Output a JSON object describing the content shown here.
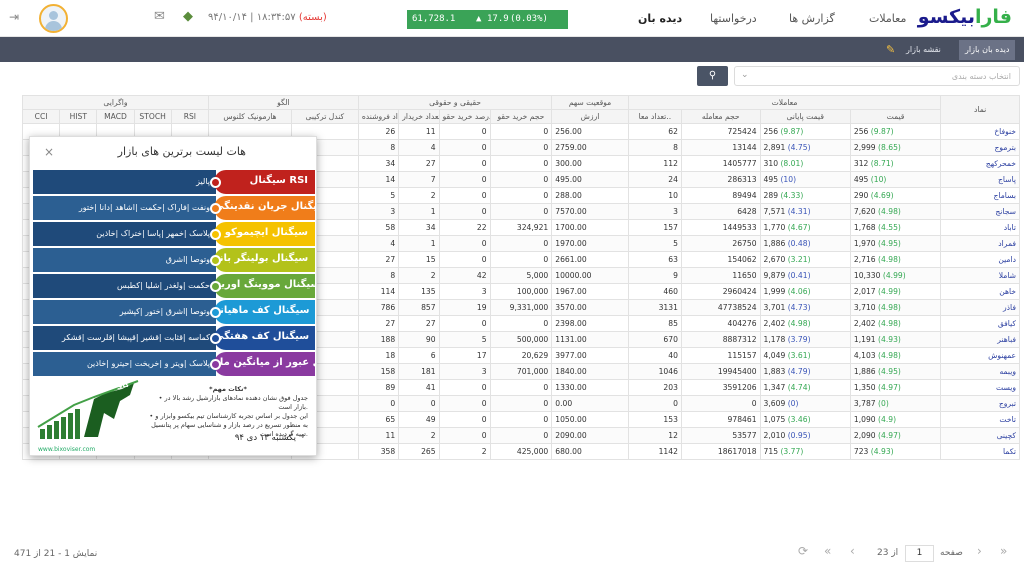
{
  "header": {
    "logo_a": "فارا",
    "logo_b": "بیکسو",
    "nav": [
      "معاملات",
      "گزارش ها",
      "درخواستها",
      "دیده بان"
    ],
    "ticker": {
      "value": "61,728.1",
      "change": "17.9",
      "pct": "(0.03%)"
    },
    "time": "۱۸:۳۴:۵۷",
    "date": "۹۴/۱۰/۱۴",
    "session": "(بسته)"
  },
  "subnav": {
    "tabs": [
      "دیده بان بازار",
      "نقشه بازار"
    ]
  },
  "filter": {
    "placeholder": "انتخاب دسته بندی"
  },
  "table": {
    "group_headers": [
      "نماد",
      "معاملات",
      "موقعیت سهم",
      "حقیقی و حقوقی",
      "الگو",
      "واگرایی"
    ],
    "columns": [
      "قیمت",
      "قیمت پایانی",
      "حجم معامله",
      "تعداد معا..",
      "ارزش",
      "حجم خرید حقو",
      "درصد خرید حقو",
      "تعداد خریدار",
      "تعداد فروشنده",
      "کندل ترکیبی",
      "هارمونیک کلنوس",
      "RSI",
      "STOCH",
      "MACD",
      "HIST",
      "CCI"
    ],
    "rows": [
      {
        "sym": "خنوفاخ",
        "price": "256",
        "pp": "(9.87)",
        "close": "256",
        "cp": "(9.87)",
        "vol": "725424",
        "cnt": "62",
        "val": "256.00",
        "hv": "0",
        "hp": "0",
        "buyers": "11",
        "sellers": "26"
      },
      {
        "sym": "بترموج",
        "price": "2,999",
        "pp": "(8.65)",
        "close": "2,891",
        "cp": "(4.75)",
        "vol": "13144",
        "cnt": "8",
        "val": "2759.00",
        "hv": "0",
        "hp": "0",
        "buyers": "4",
        "sellers": "8"
      },
      {
        "sym": "خمحرکهج",
        "price": "312",
        "pp": "(8.71)",
        "close": "310",
        "cp": "(8.01)",
        "vol": "1405777",
        "cnt": "112",
        "val": "300.00",
        "hv": "0",
        "hp": "0",
        "buyers": "27",
        "sellers": "34"
      },
      {
        "sym": "پاساج",
        "price": "495",
        "pp": "(10)",
        "close": "495",
        "cp": "(10)",
        "vol": "286313",
        "cnt": "24",
        "val": "495.00",
        "hv": "0",
        "hp": "0",
        "buyers": "7",
        "sellers": "14"
      },
      {
        "sym": "بساماج",
        "price": "290",
        "pp": "(4.69)",
        "close": "289",
        "cp": "(4.33)",
        "vol": "89494",
        "cnt": "10",
        "val": "288.00",
        "hv": "0",
        "hp": "0",
        "buyers": "2",
        "sellers": "5"
      },
      {
        "sym": "سجانج",
        "price": "7,620",
        "pp": "(4.98)",
        "close": "7,571",
        "cp": "(4.31)",
        "vol": "6428",
        "cnt": "3",
        "val": "7570.00",
        "hv": "0",
        "hp": "0",
        "buyers": "1",
        "sellers": "3"
      },
      {
        "sym": "تاباد",
        "price": "1,768",
        "pp": "(4.55)",
        "close": "1,770",
        "cp": "(4.67)",
        "vol": "1449533",
        "cnt": "157",
        "val": "1700.00",
        "hv": "324,921",
        "hp": "22",
        "buyers": "34",
        "sellers": "58"
      },
      {
        "sym": "فمراد",
        "price": "1,970",
        "pp": "(4.95)",
        "close": "1,886",
        "cp": "(0.48)",
        "vol": "26750",
        "cnt": "5",
        "val": "1970.00",
        "hv": "0",
        "hp": "0",
        "buyers": "1",
        "sellers": "4"
      },
      {
        "sym": "دامین",
        "price": "2,716",
        "pp": "(4.98)",
        "close": "2,670",
        "cp": "(3.21)",
        "vol": "154062",
        "cnt": "63",
        "val": "2661.00",
        "hv": "0",
        "hp": "0",
        "buyers": "15",
        "sellers": "27"
      },
      {
        "sym": "شاملا",
        "price": "10,330",
        "pp": "(4.99)",
        "close": "9,879",
        "cp": "(0.41)",
        "vol": "11650",
        "cnt": "9",
        "val": "10000.00",
        "hv": "5,000",
        "hp": "42",
        "buyers": "2",
        "sellers": "8"
      },
      {
        "sym": "خاهن",
        "price": "2,017",
        "pp": "(4.99)",
        "close": "1,999",
        "cp": "(4.06)",
        "vol": "2960424",
        "cnt": "460",
        "val": "1967.00",
        "hv": "100,000",
        "hp": "3",
        "buyers": "135",
        "sellers": "114"
      },
      {
        "sym": "فاذر",
        "price": "3,710",
        "pp": "(4.98)",
        "close": "3,701",
        "cp": "(4.73)",
        "vol": "47738524",
        "cnt": "3131",
        "val": "3570.00",
        "hv": "9,331,000",
        "hp": "19",
        "buyers": "857",
        "sellers": "786"
      },
      {
        "sym": "کیافق",
        "price": "2,402",
        "pp": "(4.98)",
        "close": "2,402",
        "cp": "(4.98)",
        "vol": "404276",
        "cnt": "85",
        "val": "2398.00",
        "hv": "0",
        "hp": "0",
        "buyers": "27",
        "sellers": "27"
      },
      {
        "sym": "فباهنر",
        "price": "1,191",
        "pp": "(4.93)",
        "close": "1,178",
        "cp": "(3.79)",
        "vol": "8887312",
        "cnt": "670",
        "val": "1131.00",
        "hv": "500,000",
        "hp": "5",
        "buyers": "90",
        "sellers": "188"
      },
      {
        "sym": "عمهنوش",
        "price": "4,103",
        "pp": "(4.98)",
        "close": "4,049",
        "cp": "(3.61)",
        "vol": "115157",
        "cnt": "40",
        "val": "3977.00",
        "hv": "20,629",
        "hp": "17",
        "buyers": "6",
        "sellers": "18"
      },
      {
        "sym": "ویبمه",
        "price": "1,886",
        "pp": "(4.95)",
        "close": "1,883",
        "cp": "(4.79)",
        "vol": "19945400",
        "cnt": "1046",
        "val": "1840.00",
        "hv": "701,000",
        "hp": "3",
        "buyers": "181",
        "sellers": "158"
      },
      {
        "sym": "ویست",
        "price": "1,350",
        "pp": "(4.97)",
        "close": "1,347",
        "cp": "(4.74)",
        "vol": "3591206",
        "cnt": "203",
        "val": "1330.00",
        "hv": "0",
        "hp": "0",
        "buyers": "41",
        "sellers": "89"
      },
      {
        "sym": "تبروج",
        "price": "3,787",
        "pp": "(0)",
        "close": "3,609",
        "cp": "(0)",
        "vol": "0",
        "cnt": "0",
        "val": "0.00",
        "hv": "0",
        "hp": "0",
        "buyers": "0",
        "sellers": "0"
      },
      {
        "sym": "تاخت",
        "price": "1,090",
        "pp": "(4.9)",
        "close": "1,075",
        "cp": "(3.46)",
        "vol": "978461",
        "cnt": "153",
        "val": "1050.00",
        "hv": "0",
        "hp": "0",
        "buyers": "49",
        "sellers": "65"
      },
      {
        "sym": "کچینی",
        "price": "2,090",
        "pp": "(4.97)",
        "close": "2,010",
        "cp": "(0.95)",
        "vol": "53577",
        "cnt": "12",
        "val": "2090.00",
        "hv": "0",
        "hp": "0",
        "buyers": "2",
        "sellers": "11"
      },
      {
        "sym": "تکما",
        "price": "723",
        "pp": "(4.93)",
        "close": "715",
        "cp": "(3.77)",
        "vol": "18617018",
        "cnt": "1142",
        "val": "680.00",
        "hv": "425,000",
        "hp": "2",
        "buyers": "265",
        "sellers": "358"
      }
    ]
  },
  "popup": {
    "title": "هات لیست برترین های بازار",
    "close": "×",
    "signals": [
      {
        "name": "سیگنال RSI",
        "list": "پالیز",
        "color": "#c0221d",
        "dot": "#c0221d"
      },
      {
        "name": "سیگنال جریان نقدینگی",
        "list": "ونفت |فاراک |حکمت |اشاهد |دانا |ختور",
        "color": "#f07d1a",
        "dot": "#f07d1a"
      },
      {
        "name": "سیگنال ایچیموکو",
        "list": "پلاسک |خمهر |پاسا |ختراک |خاذین",
        "color": "#f5c200",
        "dot": "#f5c200"
      },
      {
        "name": "سیگنال بولینگر باند",
        "list": "وتوصا |اشرق",
        "color": "#b3c21a",
        "dot": "#b3c21a"
      },
      {
        "name": "سیگنال مووینگ اوریج",
        "list": "حکمت |ولغدر |شلیا |کطبس",
        "color": "#68a83a",
        "dot": "#68a83a"
      },
      {
        "name": "سیگنال کف ماهیانه",
        "list": "وتوصا |اشرق |ختور |کپشیر",
        "color": "#1d9ad6",
        "dot": "#1d9ad6"
      },
      {
        "name": "سیگنال کف هفتگی",
        "list": "کماسه |قثابت |قشیر |قپیشا |قلرست |قشکر",
        "color": "#1f4e9a",
        "dot": "#1f4e9a"
      },
      {
        "name": "سیگنال عبور از میانگین ماه",
        "list": "پلاسک |ویتر و |خریخت |حیترو |خاذین",
        "color": "#8a3aa0",
        "dot": "#8a3aa0"
      }
    ],
    "notes_title": "*نکات مهم*",
    "note1": "• جدول فوق نشان دهنده نمادهای بازارشیل رشد بالا در بازار است.",
    "note2": "• این جدول بر اساس تجربه کارشناسان تیم بیکسو وابزار و به منظور تسریع در رصد بازار و شناسایی سهام پر پتانسیل تهیه گردیده است.",
    "date": "یکشنبه ۱۳ دی ۹۴",
    "brand": "گاوهای بازار",
    "url": "www.bixoviser.com"
  },
  "footer": {
    "info": "نمایش 1 - 21 از 471",
    "page_label": "صفحه",
    "page": "1",
    "of": "از 23"
  }
}
